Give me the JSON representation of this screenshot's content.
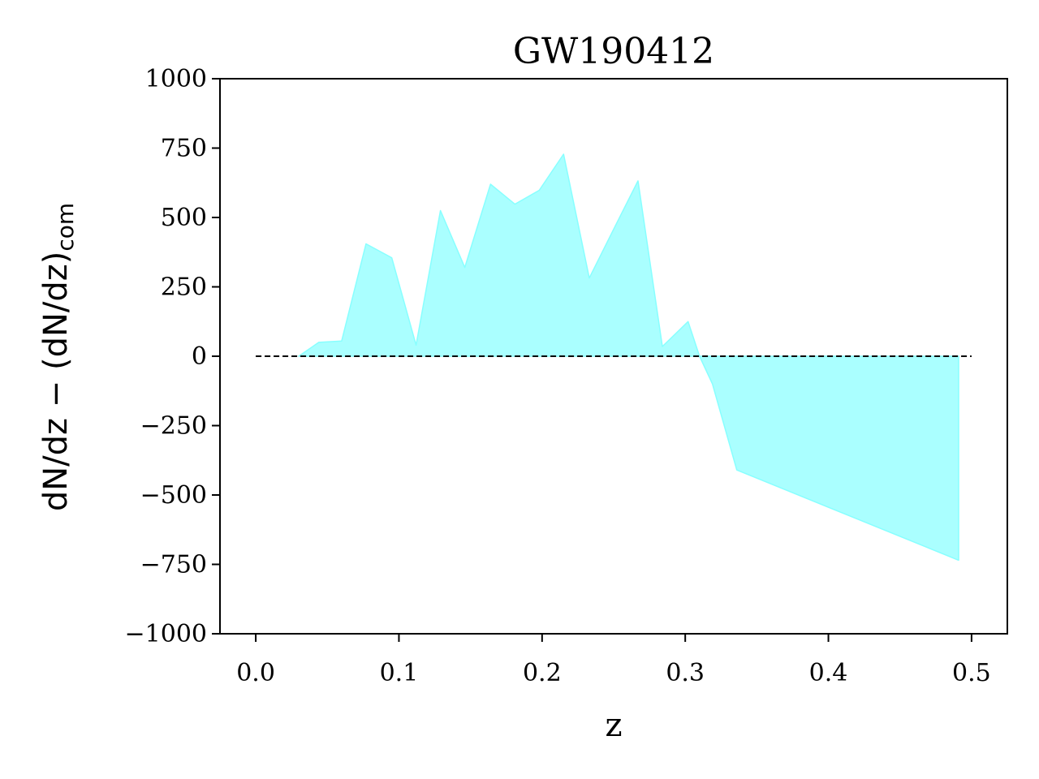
{
  "chart_data": {
    "type": "area",
    "title": "GW190412",
    "xlabel": "z",
    "ylabel": {
      "main": "dN/dz − (dN/dz)",
      "subscript": "com"
    },
    "xlim": [
      -0.025,
      0.525
    ],
    "ylim": [
      -1000,
      1000
    ],
    "xticks": [
      0.0,
      0.1,
      0.2,
      0.3,
      0.4,
      0.5
    ],
    "xtick_labels": [
      "0.0",
      "0.1",
      "0.2",
      "0.3",
      "0.4",
      "0.5"
    ],
    "yticks": [
      1000,
      750,
      500,
      250,
      0,
      -250,
      -500,
      -750,
      -1000
    ],
    "ytick_labels": [
      "1000",
      "750",
      "500",
      "250",
      "0",
      "−250",
      "−500",
      "−750",
      "−1000"
    ],
    "series": [
      {
        "fill_color": "#aaffff",
        "edge_color": "#88ffff",
        "x": [
          0.03,
          0.044,
          0.06,
          0.077,
          0.095,
          0.112,
          0.129,
          0.146,
          0.164,
          0.181,
          0.198,
          0.215,
          0.233,
          0.25,
          0.267,
          0.284,
          0.302,
          0.31,
          0.319,
          0.336,
          0.491
        ],
        "y": [
          0,
          50,
          55,
          405,
          355,
          40,
          525,
          320,
          620,
          548,
          598,
          728,
          282,
          458,
          632,
          35,
          125,
          0,
          -100,
          -410,
          -735
        ]
      }
    ],
    "reference_line": {
      "y": 0,
      "x_range": [
        0.0,
        0.5
      ],
      "style": "dashed",
      "color": "#000000"
    },
    "grid": false,
    "legend": "none"
  }
}
